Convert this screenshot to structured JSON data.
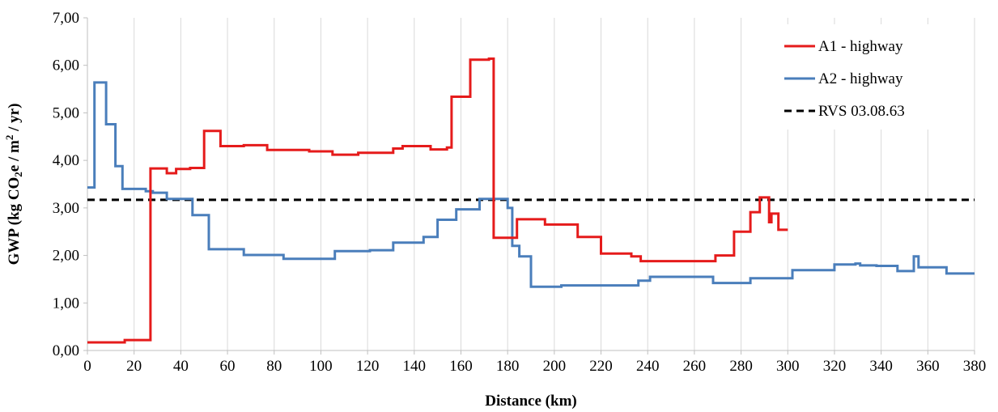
{
  "chart_data": {
    "type": "line",
    "xlabel": "Distance (km)",
    "ylabel": {
      "pre": "GWP (kg CO",
      "sub": "2",
      "mid": "e / m",
      "sup": "2",
      "post": " / yr)"
    },
    "xlim": [
      0,
      380
    ],
    "ylim": [
      0,
      7
    ],
    "x_ticks": [
      0,
      20,
      40,
      60,
      80,
      100,
      120,
      140,
      160,
      180,
      200,
      220,
      240,
      260,
      280,
      300,
      320,
      340,
      360,
      380
    ],
    "y_ticks": [
      0,
      1,
      2,
      3,
      4,
      5,
      6,
      7
    ],
    "y_tick_labels": [
      "0,00",
      "1,00",
      "2,00",
      "3,00",
      "4,00",
      "5,00",
      "6,00",
      "7,00"
    ],
    "grid": "vertical",
    "legend_position": "top-right",
    "series": [
      {
        "name": "A1 - highway",
        "color": "#e51b1b",
        "style": "solid",
        "points": [
          [
            0,
            0.17
          ],
          [
            16,
            0.17
          ],
          [
            16,
            0.22
          ],
          [
            27,
            0.22
          ],
          [
            27,
            3.83
          ],
          [
            34,
            3.83
          ],
          [
            34,
            3.73
          ],
          [
            38,
            3.73
          ],
          [
            38,
            3.82
          ],
          [
            44,
            3.82
          ],
          [
            44,
            3.84
          ],
          [
            50,
            3.84
          ],
          [
            50,
            4.62
          ],
          [
            57,
            4.62
          ],
          [
            57,
            4.3
          ],
          [
            67,
            4.3
          ],
          [
            67,
            4.32
          ],
          [
            77,
            4.32
          ],
          [
            77,
            4.22
          ],
          [
            95,
            4.22
          ],
          [
            95,
            4.19
          ],
          [
            105,
            4.19
          ],
          [
            105,
            4.12
          ],
          [
            116,
            4.12
          ],
          [
            116,
            4.16
          ],
          [
            131,
            4.16
          ],
          [
            131,
            4.25
          ],
          [
            135,
            4.25
          ],
          [
            135,
            4.3
          ],
          [
            147,
            4.3
          ],
          [
            147,
            4.23
          ],
          [
            154,
            4.23
          ],
          [
            154,
            4.27
          ],
          [
            156,
            4.27
          ],
          [
            156,
            5.34
          ],
          [
            164,
            5.34
          ],
          [
            164,
            6.12
          ],
          [
            172,
            6.12
          ],
          [
            172,
            6.14
          ],
          [
            174,
            6.14
          ],
          [
            174,
            2.37
          ],
          [
            184,
            2.37
          ],
          [
            184,
            2.76
          ],
          [
            196,
            2.76
          ],
          [
            196,
            2.65
          ],
          [
            210,
            2.65
          ],
          [
            210,
            2.39
          ],
          [
            220,
            2.39
          ],
          [
            220,
            2.04
          ],
          [
            233,
            2.04
          ],
          [
            233,
            1.98
          ],
          [
            237,
            1.98
          ],
          [
            237,
            1.88
          ],
          [
            269,
            1.88
          ],
          [
            269,
            2.0
          ],
          [
            277,
            2.0
          ],
          [
            277,
            2.5
          ],
          [
            284,
            2.5
          ],
          [
            284,
            2.91
          ],
          [
            288,
            2.91
          ],
          [
            288,
            3.22
          ],
          [
            292,
            3.22
          ],
          [
            292,
            2.7
          ],
          [
            293,
            2.7
          ],
          [
            293,
            2.88
          ],
          [
            296,
            2.88
          ],
          [
            296,
            2.54
          ],
          [
            300,
            2.54
          ]
        ]
      },
      {
        "name": "A2 - highway",
        "color": "#4a7ebb",
        "style": "solid",
        "points": [
          [
            0,
            3.43
          ],
          [
            3,
            3.43
          ],
          [
            3,
            5.64
          ],
          [
            8,
            5.64
          ],
          [
            8,
            4.76
          ],
          [
            12,
            4.76
          ],
          [
            12,
            3.88
          ],
          [
            15,
            3.88
          ],
          [
            15,
            3.4
          ],
          [
            25,
            3.4
          ],
          [
            25,
            3.35
          ],
          [
            28,
            3.35
          ],
          [
            28,
            3.32
          ],
          [
            34,
            3.32
          ],
          [
            34,
            3.19
          ],
          [
            45,
            3.19
          ],
          [
            45,
            2.85
          ],
          [
            52,
            2.85
          ],
          [
            52,
            2.13
          ],
          [
            67,
            2.13
          ],
          [
            67,
            2.01
          ],
          [
            84,
            2.01
          ],
          [
            84,
            1.93
          ],
          [
            106,
            1.93
          ],
          [
            106,
            2.09
          ],
          [
            121,
            2.09
          ],
          [
            121,
            2.11
          ],
          [
            131,
            2.11
          ],
          [
            131,
            2.27
          ],
          [
            144,
            2.27
          ],
          [
            144,
            2.39
          ],
          [
            150,
            2.39
          ],
          [
            150,
            2.75
          ],
          [
            158,
            2.75
          ],
          [
            158,
            2.97
          ],
          [
            168,
            2.97
          ],
          [
            168,
            3.19
          ],
          [
            180,
            3.19
          ],
          [
            180,
            3.0
          ],
          [
            182,
            3.0
          ],
          [
            182,
            2.2
          ],
          [
            185,
            2.2
          ],
          [
            185,
            1.98
          ],
          [
            190,
            1.98
          ],
          [
            190,
            1.34
          ],
          [
            203,
            1.34
          ],
          [
            203,
            1.37
          ],
          [
            236,
            1.37
          ],
          [
            236,
            1.47
          ],
          [
            241,
            1.47
          ],
          [
            241,
            1.55
          ],
          [
            268,
            1.55
          ],
          [
            268,
            1.42
          ],
          [
            284,
            1.42
          ],
          [
            284,
            1.52
          ],
          [
            302,
            1.52
          ],
          [
            302,
            1.69
          ],
          [
            320,
            1.69
          ],
          [
            320,
            1.81
          ],
          [
            329,
            1.81
          ],
          [
            329,
            1.83
          ],
          [
            331,
            1.83
          ],
          [
            331,
            1.79
          ],
          [
            338,
            1.79
          ],
          [
            338,
            1.78
          ],
          [
            347,
            1.78
          ],
          [
            347,
            1.67
          ],
          [
            354,
            1.67
          ],
          [
            354,
            1.98
          ],
          [
            356,
            1.98
          ],
          [
            356,
            1.75
          ],
          [
            368,
            1.75
          ],
          [
            368,
            1.62
          ],
          [
            380,
            1.62
          ]
        ]
      },
      {
        "name": "RVS 03.08.63",
        "color": "#000000",
        "style": "dashed",
        "points": [
          [
            0,
            3.17
          ],
          [
            380,
            3.17
          ]
        ]
      }
    ]
  }
}
